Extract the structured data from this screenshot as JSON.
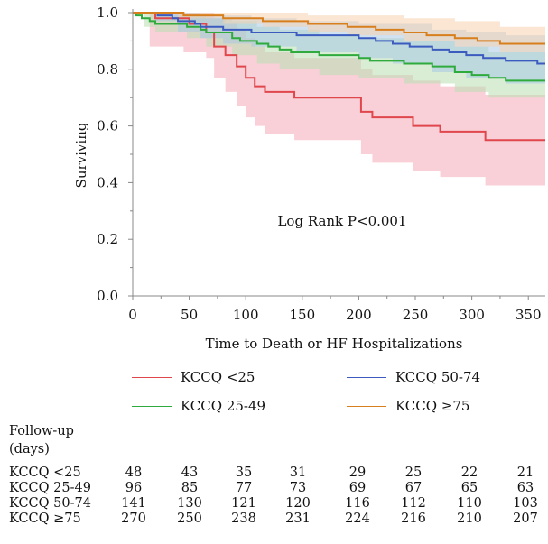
{
  "chart_data": {
    "type": "line",
    "subtype": "kaplan-meier survival with confidence bands",
    "xlabel": "Time to Death or HF Hospitalizations",
    "ylabel": "Surviving",
    "xlim": [
      0,
      365
    ],
    "ylim": [
      0.0,
      1.0
    ],
    "x_ticks": [
      0,
      50,
      100,
      150,
      200,
      250,
      300,
      350
    ],
    "y_ticks": [
      "0.0",
      "0.2",
      "0.4",
      "0.6",
      "0.8",
      "1.0"
    ],
    "annotation": "Log Rank P<0.001",
    "grid": false,
    "series": [
      {
        "name": "KCCQ <25",
        "color": "#e0474c",
        "band_color": "#f4aab8",
        "points": [
          [
            0,
            1.0
          ],
          [
            15,
            1.0
          ],
          [
            20,
            0.98
          ],
          [
            45,
            0.98
          ],
          [
            50,
            0.96
          ],
          [
            63,
            0.96
          ],
          [
            65,
            0.93
          ],
          [
            70,
            0.93
          ],
          [
            72,
            0.88
          ],
          [
            80,
            0.88
          ],
          [
            82,
            0.85
          ],
          [
            90,
            0.85
          ],
          [
            92,
            0.81
          ],
          [
            98,
            0.81
          ],
          [
            100,
            0.77
          ],
          [
            105,
            0.77
          ],
          [
            108,
            0.74
          ],
          [
            115,
            0.74
          ],
          [
            117,
            0.72
          ],
          [
            140,
            0.72
          ],
          [
            143,
            0.7
          ],
          [
            200,
            0.7
          ],
          [
            202,
            0.65
          ],
          [
            210,
            0.65
          ],
          [
            212,
            0.63
          ],
          [
            245,
            0.63
          ],
          [
            248,
            0.6
          ],
          [
            270,
            0.6
          ],
          [
            272,
            0.58
          ],
          [
            310,
            0.58
          ],
          [
            312,
            0.55
          ],
          [
            365,
            0.55
          ]
        ],
        "lower": [
          [
            0,
            1.0
          ],
          [
            15,
            0.88
          ],
          [
            45,
            0.86
          ],
          [
            65,
            0.84
          ],
          [
            72,
            0.77
          ],
          [
            82,
            0.72
          ],
          [
            92,
            0.67
          ],
          [
            100,
            0.63
          ],
          [
            108,
            0.6
          ],
          [
            117,
            0.57
          ],
          [
            143,
            0.55
          ],
          [
            202,
            0.5
          ],
          [
            212,
            0.47
          ],
          [
            248,
            0.44
          ],
          [
            272,
            0.42
          ],
          [
            312,
            0.39
          ],
          [
            365,
            0.39
          ]
        ],
        "upper": [
          [
            0,
            1.0
          ],
          [
            15,
            1.0
          ],
          [
            45,
            1.0
          ],
          [
            65,
            1.0
          ],
          [
            72,
            0.98
          ],
          [
            82,
            0.96
          ],
          [
            92,
            0.94
          ],
          [
            100,
            0.91
          ],
          [
            108,
            0.88
          ],
          [
            117,
            0.86
          ],
          [
            143,
            0.84
          ],
          [
            202,
            0.8
          ],
          [
            212,
            0.78
          ],
          [
            248,
            0.76
          ],
          [
            272,
            0.74
          ],
          [
            312,
            0.71
          ],
          [
            365,
            0.71
          ]
        ]
      },
      {
        "name": "KCCQ 25-49",
        "color": "#2faa3c",
        "band_color": "#b8dfb0",
        "points": [
          [
            0,
            1.0
          ],
          [
            3,
            0.99
          ],
          [
            8,
            0.98
          ],
          [
            15,
            0.97
          ],
          [
            20,
            0.96
          ],
          [
            45,
            0.96
          ],
          [
            48,
            0.95
          ],
          [
            60,
            0.94
          ],
          [
            65,
            0.93
          ],
          [
            85,
            0.93
          ],
          [
            88,
            0.91
          ],
          [
            95,
            0.9
          ],
          [
            110,
            0.89
          ],
          [
            120,
            0.88
          ],
          [
            130,
            0.87
          ],
          [
            140,
            0.86
          ],
          [
            160,
            0.86
          ],
          [
            165,
            0.85
          ],
          [
            195,
            0.85
          ],
          [
            200,
            0.84
          ],
          [
            210,
            0.83
          ],
          [
            240,
            0.82
          ],
          [
            265,
            0.81
          ],
          [
            285,
            0.79
          ],
          [
            300,
            0.78
          ],
          [
            315,
            0.77
          ],
          [
            330,
            0.76
          ],
          [
            365,
            0.76
          ]
        ],
        "lower": [
          [
            0,
            1.0
          ],
          [
            10,
            0.95
          ],
          [
            20,
            0.93
          ],
          [
            48,
            0.91
          ],
          [
            65,
            0.88
          ],
          [
            88,
            0.85
          ],
          [
            110,
            0.82
          ],
          [
            130,
            0.8
          ],
          [
            165,
            0.78
          ],
          [
            200,
            0.77
          ],
          [
            240,
            0.75
          ],
          [
            285,
            0.72
          ],
          [
            315,
            0.7
          ],
          [
            365,
            0.67
          ]
        ],
        "upper": [
          [
            0,
            1.0
          ],
          [
            10,
            1.0
          ],
          [
            20,
            0.99
          ],
          [
            48,
            0.99
          ],
          [
            65,
            0.98
          ],
          [
            88,
            0.97
          ],
          [
            110,
            0.95
          ],
          [
            130,
            0.94
          ],
          [
            165,
            0.92
          ],
          [
            200,
            0.91
          ],
          [
            240,
            0.9
          ],
          [
            285,
            0.88
          ],
          [
            315,
            0.86
          ],
          [
            365,
            0.85
          ]
        ]
      },
      {
        "name": "KCCQ 50-74",
        "color": "#3b5bbf",
        "band_color": "#a9c8e6",
        "points": [
          [
            0,
            1.0
          ],
          [
            20,
            1.0
          ],
          [
            22,
            0.99
          ],
          [
            35,
            0.98
          ],
          [
            40,
            0.97
          ],
          [
            55,
            0.96
          ],
          [
            60,
            0.95
          ],
          [
            75,
            0.95
          ],
          [
            80,
            0.94
          ],
          [
            100,
            0.94
          ],
          [
            105,
            0.93
          ],
          [
            140,
            0.93
          ],
          [
            145,
            0.92
          ],
          [
            200,
            0.91
          ],
          [
            215,
            0.9
          ],
          [
            230,
            0.89
          ],
          [
            245,
            0.88
          ],
          [
            265,
            0.87
          ],
          [
            280,
            0.86
          ],
          [
            295,
            0.85
          ],
          [
            310,
            0.84
          ],
          [
            330,
            0.83
          ],
          [
            355,
            0.83
          ],
          [
            358,
            0.82
          ],
          [
            365,
            0.82
          ]
        ],
        "lower": [
          [
            0,
            1.0
          ],
          [
            20,
            0.97
          ],
          [
            40,
            0.93
          ],
          [
            60,
            0.91
          ],
          [
            80,
            0.89
          ],
          [
            105,
            0.88
          ],
          [
            145,
            0.86
          ],
          [
            200,
            0.84
          ],
          [
            230,
            0.82
          ],
          [
            265,
            0.79
          ],
          [
            295,
            0.77
          ],
          [
            330,
            0.75
          ],
          [
            365,
            0.74
          ]
        ],
        "upper": [
          [
            0,
            1.0
          ],
          [
            20,
            1.0
          ],
          [
            40,
            1.0
          ],
          [
            60,
            0.99
          ],
          [
            80,
            0.99
          ],
          [
            105,
            0.98
          ],
          [
            145,
            0.97
          ],
          [
            200,
            0.96
          ],
          [
            230,
            0.96
          ],
          [
            265,
            0.94
          ],
          [
            295,
            0.93
          ],
          [
            330,
            0.92
          ],
          [
            365,
            0.9
          ]
        ]
      },
      {
        "name": "KCCQ ≥75",
        "color": "#d87f1d",
        "band_color": "#f6d2ad",
        "points": [
          [
            0,
            1.0
          ],
          [
            40,
            1.0
          ],
          [
            45,
            0.99
          ],
          [
            75,
            0.99
          ],
          [
            80,
            0.98
          ],
          [
            110,
            0.98
          ],
          [
            115,
            0.97
          ],
          [
            150,
            0.97
          ],
          [
            155,
            0.96
          ],
          [
            190,
            0.95
          ],
          [
            215,
            0.94
          ],
          [
            240,
            0.93
          ],
          [
            260,
            0.92
          ],
          [
            285,
            0.91
          ],
          [
            305,
            0.9
          ],
          [
            325,
            0.89
          ],
          [
            365,
            0.89
          ]
        ],
        "lower": [
          [
            0,
            1.0
          ],
          [
            40,
            0.98
          ],
          [
            80,
            0.96
          ],
          [
            115,
            0.95
          ],
          [
            155,
            0.93
          ],
          [
            190,
            0.92
          ],
          [
            240,
            0.9
          ],
          [
            285,
            0.88
          ],
          [
            325,
            0.86
          ],
          [
            365,
            0.85
          ]
        ],
        "upper": [
          [
            0,
            1.0
          ],
          [
            40,
            1.0
          ],
          [
            80,
            1.0
          ],
          [
            115,
            1.0
          ],
          [
            155,
            0.99
          ],
          [
            190,
            0.99
          ],
          [
            240,
            0.98
          ],
          [
            285,
            0.97
          ],
          [
            325,
            0.95
          ],
          [
            365,
            0.94
          ]
        ]
      }
    ],
    "legend": {
      "placement": "below",
      "items": [
        "KCCQ <25",
        "KCCQ 50-74",
        "KCCQ 25-49",
        "KCCQ ≥75"
      ]
    },
    "at_risk_table": {
      "header_line1": "Follow-up",
      "header_line2": "(days)",
      "rows": [
        {
          "label": "KCCQ <25",
          "values": [
            "48",
            "43",
            "35",
            "31",
            "29",
            "25",
            "22",
            "21"
          ]
        },
        {
          "label": "KCCQ 25-49",
          "values": [
            "96",
            "85",
            "77",
            "73",
            "69",
            "67",
            "65",
            "63"
          ]
        },
        {
          "label": "KCCQ 50-74",
          "values": [
            "141",
            "130",
            "121",
            "120",
            "116",
            "112",
            "110",
            "103"
          ]
        },
        {
          "label": "KCCQ ≥75",
          "values": [
            "270",
            "250",
            "238",
            "231",
            "224",
            "216",
            "210",
            "207"
          ]
        }
      ]
    }
  }
}
